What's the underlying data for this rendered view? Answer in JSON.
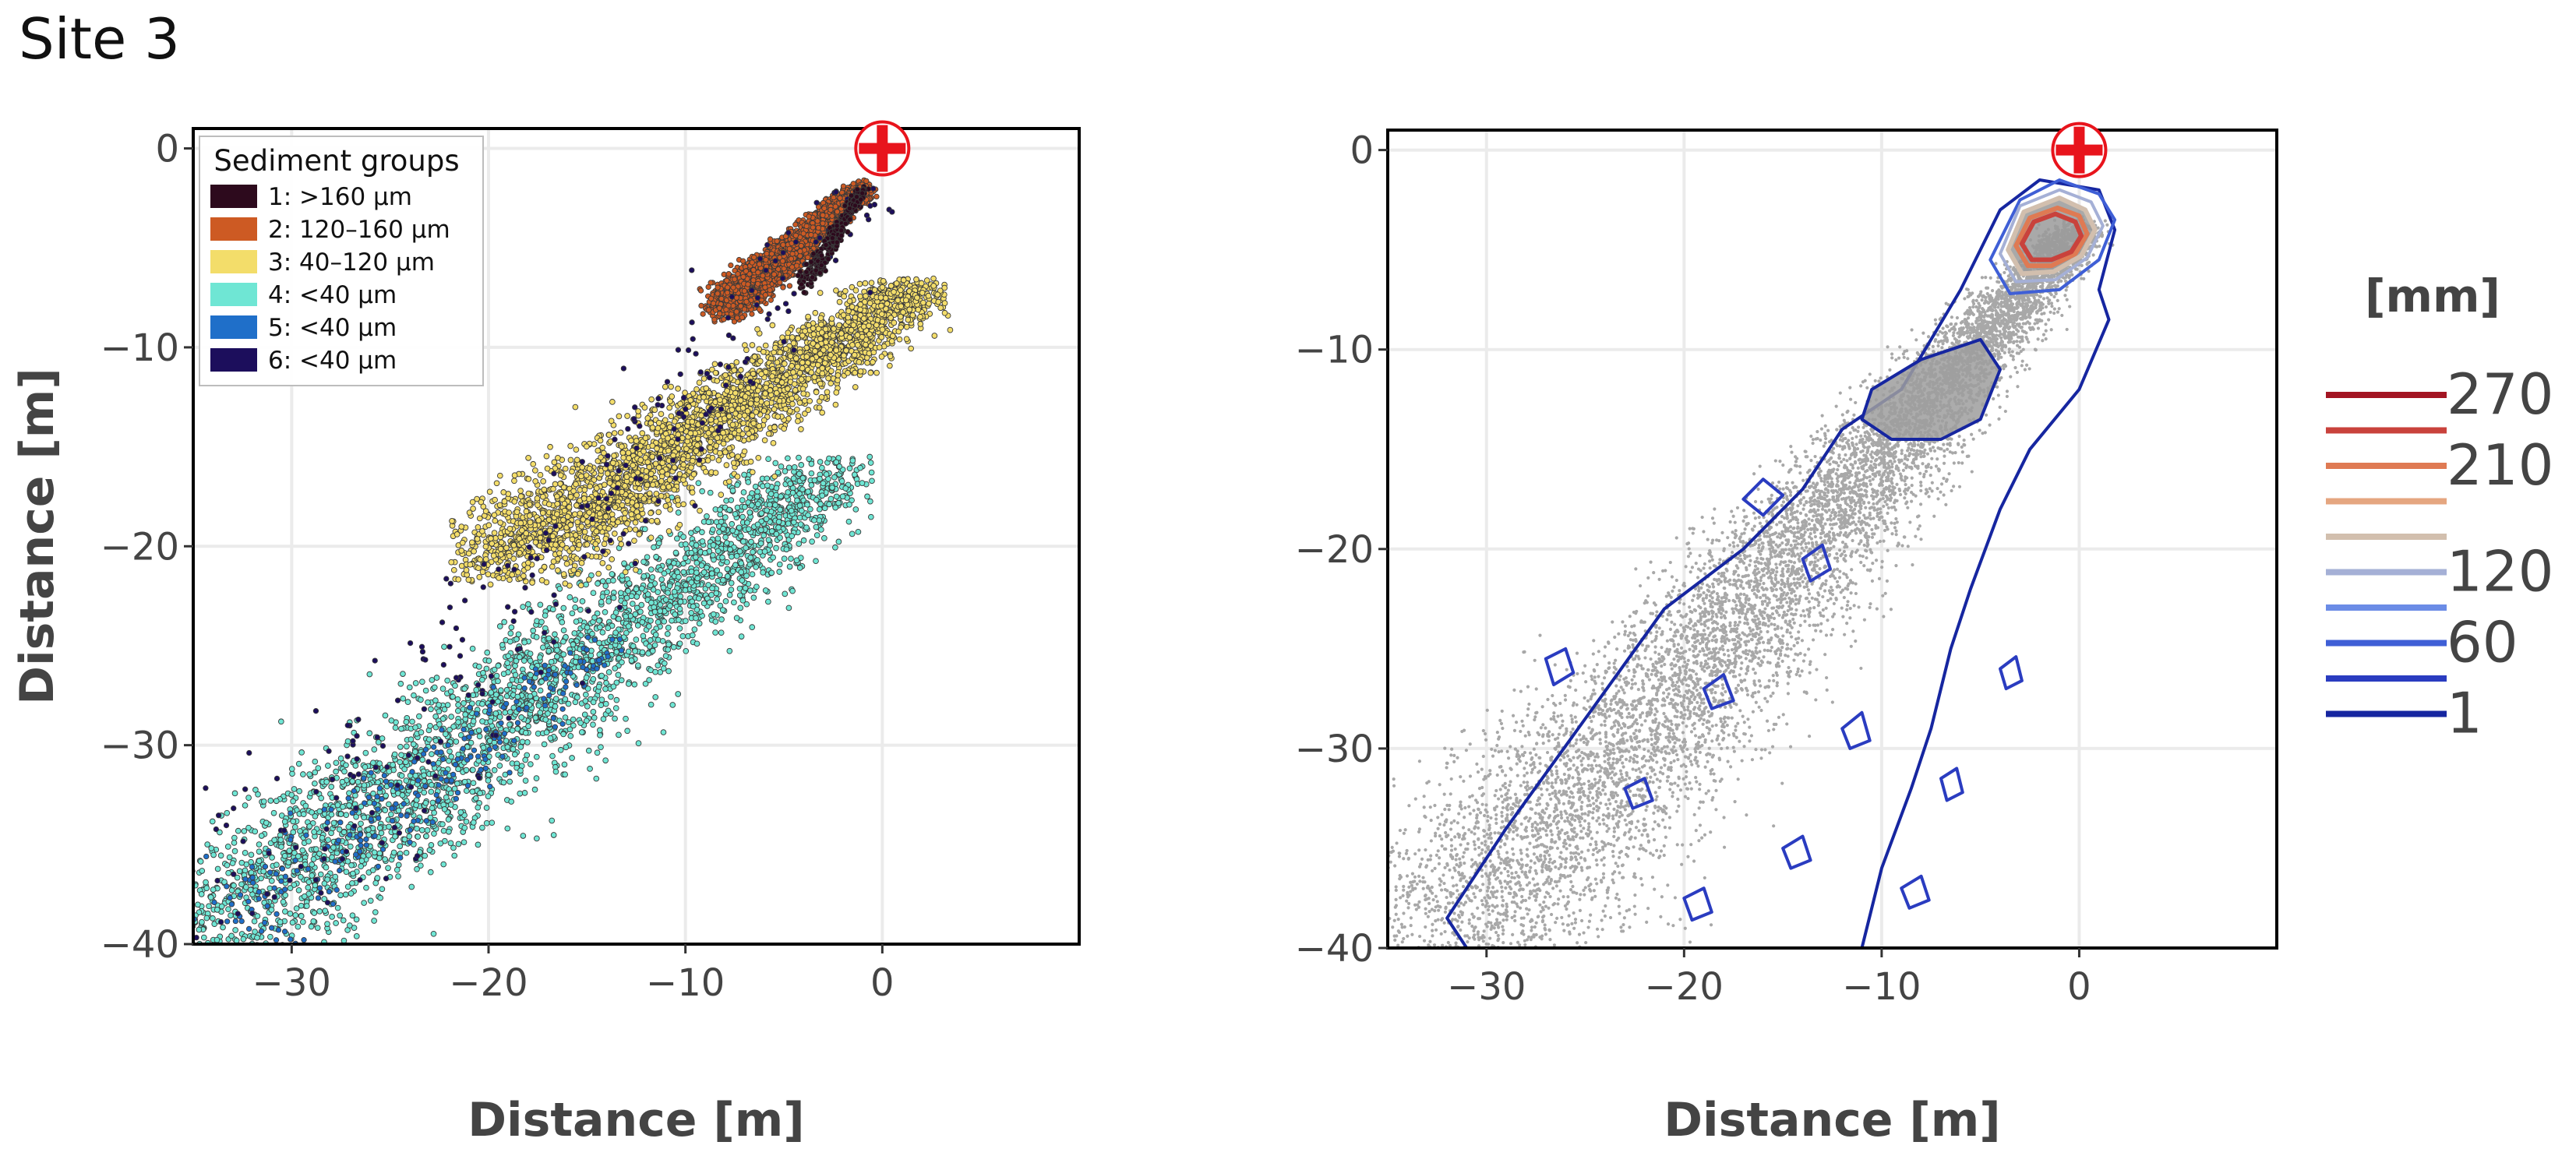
{
  "page_title": "Site 3",
  "colors": {
    "grid": "#ebebeb",
    "frame": "#000000",
    "marker_red": "#e8141c",
    "points_gray": "#a8a8a8"
  },
  "chart_data": [
    {
      "type": "scatter",
      "panel": "left",
      "xlabel": "Distance [m]",
      "ylabel": "Distance [m]",
      "xlim": [
        -35,
        10
      ],
      "ylim": [
        -40,
        1
      ],
      "xticks": [
        -30,
        -20,
        -10,
        0
      ],
      "yticks": [
        0,
        -10,
        -20,
        -30,
        -40
      ],
      "grid": true,
      "legend_placement": "top-left",
      "legend_title": "Sediment groups",
      "source_marker": {
        "x": 0,
        "y": 0,
        "icon": "red-cross-circle-icon"
      },
      "series": [
        {
          "name": "1: >160 µm",
          "color": "#2d0a1d",
          "cloud": {
            "x": [
              -4,
              -1
            ],
            "y": [
              -7,
              -2
            ]
          },
          "density": "low"
        },
        {
          "name": "2: 120–160 µm",
          "color": "#cd5a23",
          "cloud": {
            "x": [
              -8,
              -1
            ],
            "y": [
              -8,
              -2
            ]
          },
          "density": "high"
        },
        {
          "name": "3: 40–120 µm",
          "color": "#f3dd6a",
          "cloud": {
            "x": [
              -20,
              2
            ],
            "y": [
              -21,
              -7
            ]
          },
          "density": "high"
        },
        {
          "name": "4: <40 µm",
          "color": "#6fe6d4",
          "cloud": {
            "x": [
              -35,
              -2
            ],
            "y": [
              -40,
              -16
            ]
          },
          "density": "high"
        },
        {
          "name": "5: <40 µm",
          "color": "#1f6fc9",
          "cloud": {
            "x": [
              -34,
              -14
            ],
            "y": [
              -40,
              -25
            ]
          },
          "density": "low"
        },
        {
          "name": "6: <40 µm",
          "color": "#1c0e5c",
          "cloud": {
            "x": [
              -33,
              -1
            ],
            "y": [
              -40,
              -2
            ]
          },
          "density": "low"
        }
      ]
    },
    {
      "type": "scatter",
      "panel": "right",
      "subtype": "scatter-with-contours",
      "xlabel": "Distance [m]",
      "ylabel": "",
      "xlim": [
        -35,
        10
      ],
      "ylim": [
        -40,
        1
      ],
      "xticks": [
        -30,
        -20,
        -10,
        0
      ],
      "yticks": [
        0,
        -10,
        -20,
        -30,
        -40
      ],
      "grid": true,
      "source_marker": {
        "x": 0,
        "y": 0,
        "icon": "red-cross-circle-icon"
      },
      "points_cloud": {
        "x": [
          -35,
          2
        ],
        "y": [
          -40,
          -2
        ],
        "color": "#a8a8a8"
      },
      "colorbar": {
        "unit": "[mm]",
        "labels": [
          "270",
          "210",
          "120",
          "60",
          "1"
        ],
        "levels": [
          {
            "color": "#a31523"
          },
          {
            "color": "#c9423c"
          },
          {
            "color": "#df7a53"
          },
          {
            "color": "#e5a680"
          },
          {
            "color": "#d2bfae"
          },
          {
            "color": "#a5b0d6"
          },
          {
            "color": "#6b8ce6"
          },
          {
            "color": "#3f5fd6"
          },
          {
            "color": "#2a3cc0"
          },
          {
            "color": "#1626a0"
          }
        ]
      },
      "contours": [
        {
          "level_index": 9,
          "ring": [
            [
              -32,
              -38.5
            ],
            [
              -29,
              -34
            ],
            [
              -25,
              -28.5
            ],
            [
              -21,
              -23
            ],
            [
              -17,
              -20
            ],
            [
              -14,
              -17
            ],
            [
              -12,
              -14
            ],
            [
              -9,
              -12
            ],
            [
              -6,
              -7
            ],
            [
              -4,
              -3
            ],
            [
              -2,
              -1.5
            ],
            [
              1,
              -2
            ],
            [
              1.8,
              -4
            ],
            [
              1,
              -7
            ],
            [
              1.5,
              -8.5
            ],
            [
              0,
              -12
            ],
            [
              -2.5,
              -15
            ],
            [
              -4,
              -18
            ],
            [
              -5.5,
              -22
            ],
            [
              -6.5,
              -25
            ],
            [
              -7.5,
              -29
            ],
            [
              -8.5,
              -32
            ],
            [
              -10,
              -36
            ],
            [
              -11,
              -40
            ],
            [
              -15,
              -40
            ],
            [
              -18,
              -40
            ],
            [
              -22,
              -40
            ],
            [
              -25,
              -40
            ],
            [
              -28,
              -40
            ],
            [
              -30,
              -40
            ],
            [
              -31,
              -40
            ]
          ]
        },
        {
          "level_index": 9,
          "ring": [
            [
              -10.5,
              -12
            ],
            [
              -8,
              -10.5
            ],
            [
              -5,
              -9.5
            ],
            [
              -4,
              -11
            ],
            [
              -5,
              -13.5
            ],
            [
              -7,
              -14.5
            ],
            [
              -9.5,
              -14.5
            ],
            [
              -11,
              -13.5
            ]
          ]
        },
        {
          "level_index": 7,
          "ring": [
            [
              -4.5,
              -5.5
            ],
            [
              -3,
              -2.5
            ],
            [
              -1,
              -1.5
            ],
            [
              1,
              -2.2
            ],
            [
              1.8,
              -3.5
            ],
            [
              1,
              -5.5
            ],
            [
              -1,
              -7
            ],
            [
              -3.5,
              -7.2
            ]
          ]
        },
        {
          "level_index": 5,
          "ring": [
            [
              -4,
              -5.2
            ],
            [
              -3,
              -2.8
            ],
            [
              -1,
              -2
            ],
            [
              0.6,
              -2.6
            ],
            [
              1.2,
              -3.8
            ],
            [
              0.4,
              -5.4
            ],
            [
              -1.2,
              -6.5
            ],
            [
              -3.2,
              -6.6
            ]
          ]
        },
        {
          "level_index": 4,
          "ring": [
            [
              -3.6,
              -5
            ],
            [
              -2.8,
              -3.1
            ],
            [
              -1,
              -2.4
            ],
            [
              0.3,
              -3
            ],
            [
              0.8,
              -4
            ],
            [
              0.1,
              -5.3
            ],
            [
              -1.3,
              -6.1
            ],
            [
              -2.9,
              -6.2
            ]
          ]
        },
        {
          "level_index": 2,
          "ring": [
            [
              -3.2,
              -4.8
            ],
            [
              -2.5,
              -3.4
            ],
            [
              -1.1,
              -2.9
            ],
            [
              0,
              -3.3
            ],
            [
              0.4,
              -4.2
            ],
            [
              -0.2,
              -5.2
            ],
            [
              -1.4,
              -5.8
            ],
            [
              -2.6,
              -5.8
            ]
          ]
        },
        {
          "level_index": 1,
          "ring": [
            [
              -2.9,
              -4.7
            ],
            [
              -2.3,
              -3.6
            ],
            [
              -1.2,
              -3.2
            ],
            [
              -0.2,
              -3.6
            ],
            [
              0.1,
              -4.3
            ],
            [
              -0.4,
              -5.1
            ],
            [
              -1.4,
              -5.5
            ],
            [
              -2.4,
              -5.5
            ]
          ]
        },
        {
          "level_index": 8,
          "ring": [
            [
              -17,
              -17.5
            ],
            [
              -16,
              -16.5
            ],
            [
              -15,
              -17.3
            ],
            [
              -16,
              -18.3
            ]
          ]
        },
        {
          "level_index": 8,
          "ring": [
            [
              -14,
              -20.5
            ],
            [
              -13,
              -19.8
            ],
            [
              -12.6,
              -21
            ],
            [
              -13.6,
              -21.6
            ]
          ]
        },
        {
          "level_index": 8,
          "ring": [
            [
              -27,
              -25.5
            ],
            [
              -26,
              -25
            ],
            [
              -25.6,
              -26.2
            ],
            [
              -26.6,
              -26.8
            ]
          ]
        },
        {
          "level_index": 8,
          "ring": [
            [
              -19,
              -27
            ],
            [
              -18,
              -26.3
            ],
            [
              -17.5,
              -27.6
            ],
            [
              -18.6,
              -28
            ]
          ]
        },
        {
          "level_index": 8,
          "ring": [
            [
              -12,
              -29
            ],
            [
              -11,
              -28.2
            ],
            [
              -10.6,
              -29.6
            ],
            [
              -11.6,
              -30
            ]
          ]
        },
        {
          "level_index": 8,
          "ring": [
            [
              -23,
              -32
            ],
            [
              -22,
              -31.5
            ],
            [
              -21.6,
              -32.6
            ],
            [
              -22.6,
              -33
            ]
          ]
        },
        {
          "level_index": 8,
          "ring": [
            [
              -15,
              -35
            ],
            [
              -14,
              -34.4
            ],
            [
              -13.6,
              -35.6
            ],
            [
              -14.6,
              -36
            ]
          ]
        },
        {
          "level_index": 8,
          "ring": [
            [
              -9,
              -37
            ],
            [
              -8,
              -36.4
            ],
            [
              -7.6,
              -37.6
            ],
            [
              -8.6,
              -38
            ]
          ]
        },
        {
          "level_index": 8,
          "ring": [
            [
              -20,
              -37.5
            ],
            [
              -19,
              -37
            ],
            [
              -18.6,
              -38.2
            ],
            [
              -19.6,
              -38.6
            ]
          ]
        },
        {
          "level_index": 8,
          "ring": [
            [
              -4,
              -26
            ],
            [
              -3.2,
              -25.4
            ],
            [
              -2.9,
              -26.6
            ],
            [
              -3.7,
              -27
            ]
          ]
        },
        {
          "level_index": 8,
          "ring": [
            [
              -7,
              -31.5
            ],
            [
              -6.2,
              -31
            ],
            [
              -5.9,
              -32.2
            ],
            [
              -6.7,
              -32.6
            ]
          ]
        }
      ]
    }
  ]
}
